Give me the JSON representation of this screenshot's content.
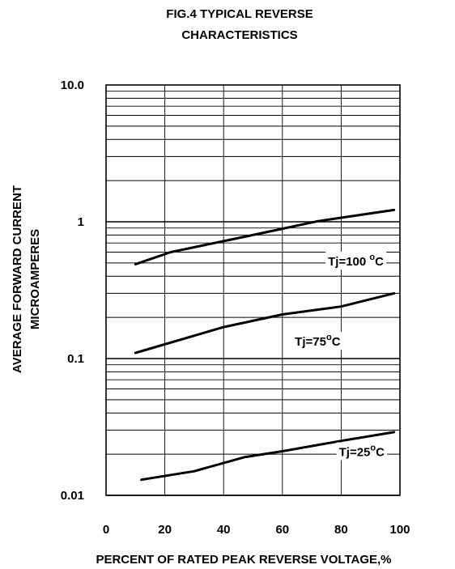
{
  "chart_data": {
    "type": "line",
    "title_lines": [
      "FIG.4 TYPICAL REVERSE",
      "CHARACTERISTICS"
    ],
    "xlabel": "PERCENT OF RATED PEAK REVERSE VOLTAGE,%",
    "ylabel_lines": [
      "AVERAGE FORWARD CURRENT",
      "MICROAMPERES"
    ],
    "x_scale": "linear",
    "y_scale": "log",
    "xlim": [
      0,
      100
    ],
    "ylim": [
      0.01,
      10.0
    ],
    "x_ticks": [
      0,
      20,
      40,
      60,
      80,
      100
    ],
    "x_tick_labels": [
      "0",
      "20",
      "40",
      "60",
      "80",
      "100"
    ],
    "y_ticks": [
      0.01,
      0.1,
      1,
      10
    ],
    "y_tick_labels": [
      "0.01",
      "0.1",
      "1",
      "10.0"
    ],
    "grid": true,
    "series": [
      {
        "name": "Tj=100 °C",
        "label_main": "Tj=100 ",
        "label_sup": "o",
        "label_unit": "C",
        "label_at": {
          "x": 85,
          "y": 0.52
        },
        "x": [
          10,
          22,
          45,
          60,
          72,
          80,
          98
        ],
        "y": [
          0.49,
          0.6,
          0.76,
          0.89,
          1.01,
          1.07,
          1.22
        ]
      },
      {
        "name": "Tj=75°C",
        "label_main": "Tj=75",
        "label_sup": "o",
        "label_unit": "C",
        "label_at": {
          "x": 72,
          "y": 0.135
        },
        "x": [
          10,
          40,
          60,
          80,
          98
        ],
        "y": [
          0.11,
          0.17,
          0.21,
          0.24,
          0.3
        ]
      },
      {
        "name": "Tj=25°C",
        "label_main": "Tj=25",
        "label_sup": "o",
        "label_unit": "C",
        "label_at": {
          "x": 87,
          "y": 0.021
        },
        "x": [
          12,
          30,
          47,
          60,
          80,
          98
        ],
        "y": [
          0.013,
          0.015,
          0.019,
          0.021,
          0.025,
          0.029
        ]
      }
    ]
  }
}
